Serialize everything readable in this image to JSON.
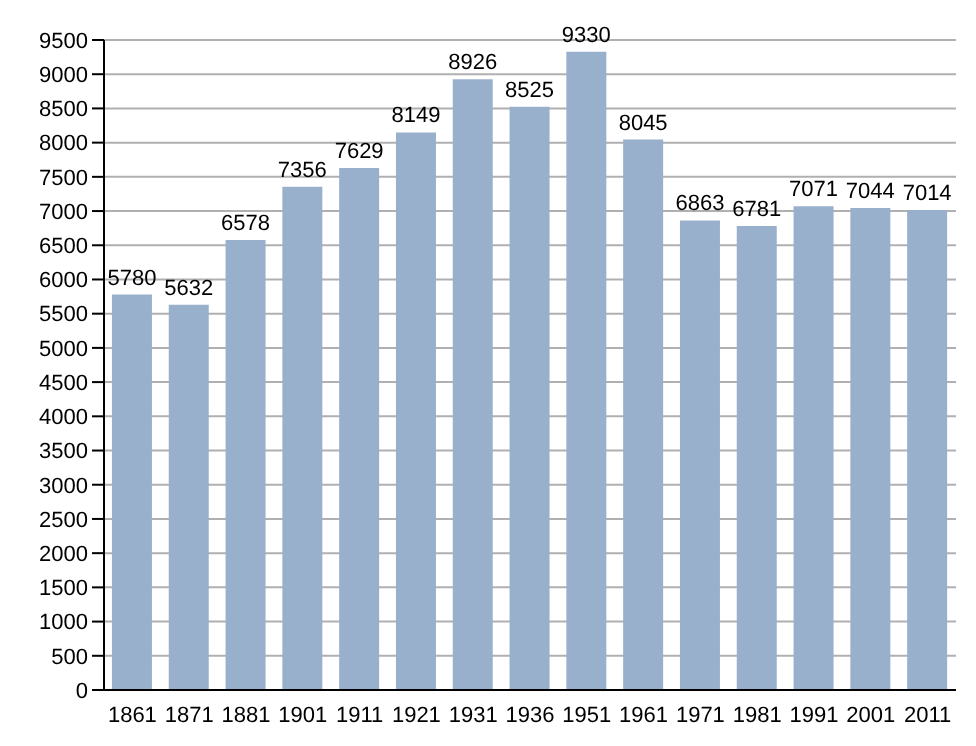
{
  "chart_data": {
    "type": "bar",
    "categories": [
      "1861",
      "1871",
      "1881",
      "1901",
      "1911",
      "1921",
      "1931",
      "1936",
      "1951",
      "1961",
      "1971",
      "1981",
      "1991",
      "2001",
      "2011"
    ],
    "values": [
      5780,
      5632,
      6578,
      7356,
      7629,
      8149,
      8926,
      8525,
      9330,
      8045,
      6863,
      6781,
      7071,
      7044,
      7014
    ],
    "color": "#98b0cc",
    "data_labels": true,
    "ylim": [
      0,
      9500
    ],
    "yticks": [
      0,
      500,
      1000,
      1500,
      2000,
      2500,
      3000,
      3500,
      4000,
      4500,
      5000,
      5500,
      6000,
      6500,
      7000,
      7500,
      8000,
      8500,
      9000,
      9500
    ],
    "grid": "y"
  }
}
